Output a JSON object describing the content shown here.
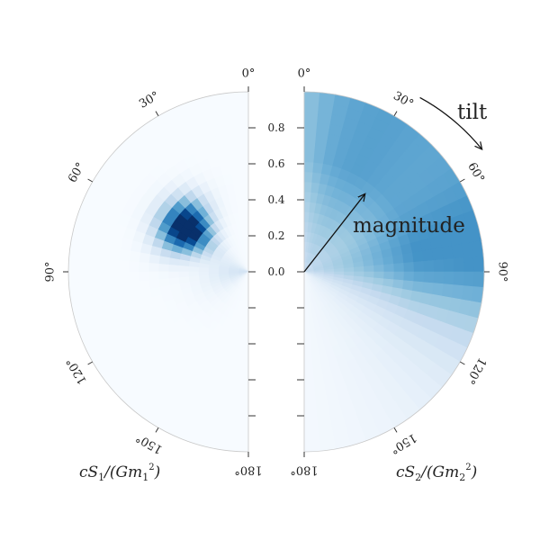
{
  "chart_data": {
    "type": "heatmap",
    "projection": "half-polar",
    "angle_unit": "degrees",
    "angle_ticks": [
      "0°",
      "30°",
      "60°",
      "90°",
      "120°",
      "150°",
      "180°"
    ],
    "radial_ticks": [
      "0.0",
      "0.2",
      "0.4",
      "0.6",
      "0.8"
    ],
    "radial_range": [
      0,
      1
    ],
    "grid": false,
    "colormap": "Blues",
    "panels": [
      {
        "side": "left",
        "axis_label": {
          "prefix": "cS",
          "sub": "1",
          "mid": "/(Gm",
          "sub2": "1",
          "sup": "2",
          "suffix": ")"
        },
        "density_peak": {
          "tilt_deg": 55,
          "magnitude": 0.42
        },
        "description_values": {
          "peak_density": 1.0
        }
      },
      {
        "side": "right",
        "axis_label": {
          "prefix": "cS",
          "sub": "2",
          "mid": "/(Gm",
          "sub2": "2",
          "sup": "2",
          "suffix": ")"
        },
        "density_peak": {
          "tilt_deg": 45,
          "magnitude": 0.7
        },
        "description_values": {
          "peak_density": 0.62
        }
      }
    ],
    "annotations": {
      "magnitude": "magnitude",
      "tilt": "tilt"
    }
  }
}
